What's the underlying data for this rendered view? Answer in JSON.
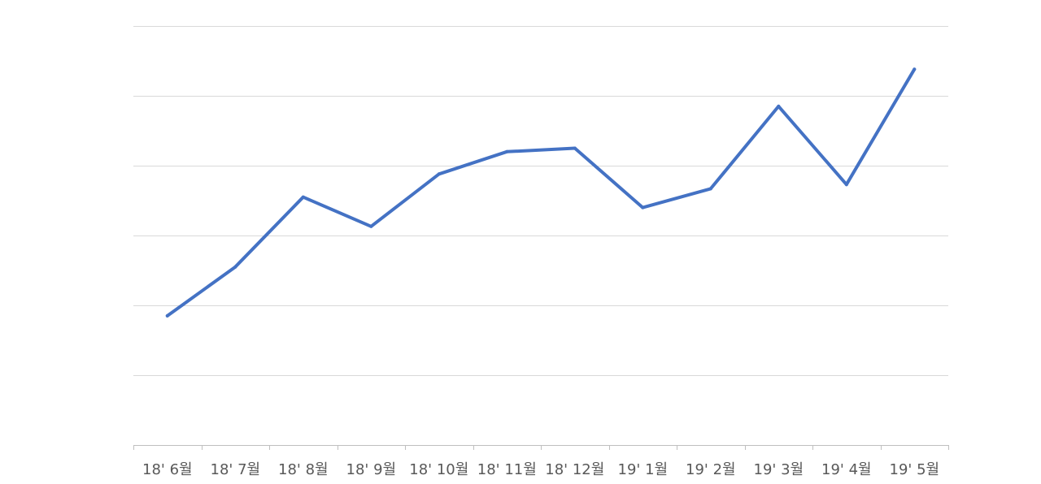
{
  "chart_data": {
    "type": "line",
    "title": "",
    "xlabel": "",
    "ylabel": "",
    "categories": [
      "18' 6월",
      "18' 7월",
      "18' 8월",
      "18' 9월",
      "18' 10월",
      "18' 11월",
      "18' 12월",
      "19' 1월",
      "19' 2월",
      "19' 3월",
      "19' 4월",
      "19' 5월"
    ],
    "series": [
      {
        "color": "#4472c4",
        "values": [
          1.85,
          2.55,
          3.55,
          3.13,
          3.88,
          4.2,
          4.25,
          3.4,
          3.67,
          4.85,
          3.73,
          5.38
        ]
      }
    ],
    "ylim": [
      0,
      6
    ],
    "gridline_count": 6,
    "grid": true,
    "y_tick_labels_visible": false,
    "legend": "none"
  }
}
